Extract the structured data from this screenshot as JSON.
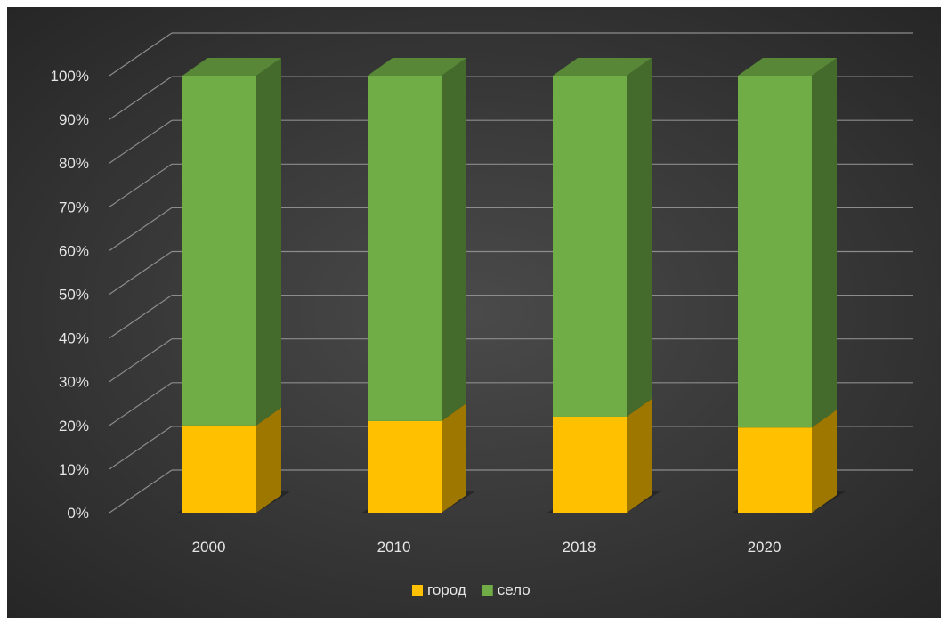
{
  "chart_data": {
    "type": "bar",
    "stacked": true,
    "percent": true,
    "three_d": true,
    "categories": [
      "2000",
      "2010",
      "2018",
      "2020"
    ],
    "series": [
      {
        "name": "город",
        "color": "#ffc000",
        "values": [
          20,
          21,
          22,
          19.5
        ]
      },
      {
        "name": "село",
        "color": "#70ad47",
        "values": [
          80,
          79,
          78,
          80.5
        ]
      }
    ],
    "y_ticks": [
      "0%",
      "10%",
      "20%",
      "30%",
      "40%",
      "50%",
      "60%",
      "70%",
      "80%",
      "90%",
      "100%"
    ],
    "ylim": [
      0,
      100
    ],
    "grid": true,
    "legend_position": "bottom",
    "background": "#3a3a3a"
  }
}
